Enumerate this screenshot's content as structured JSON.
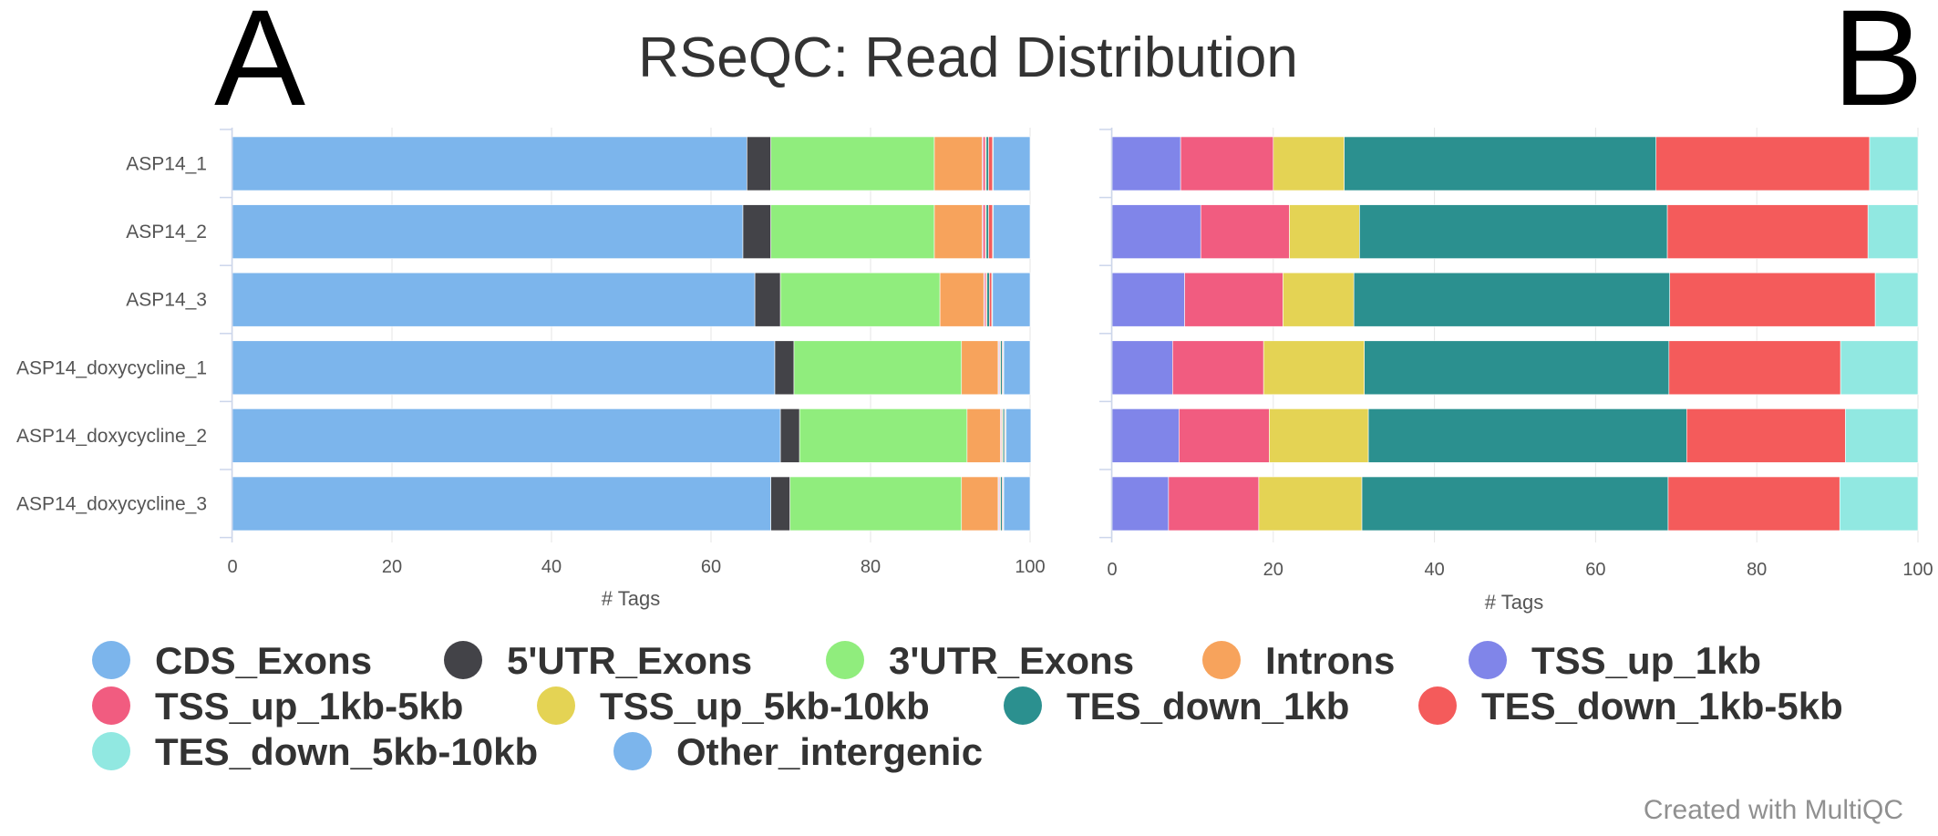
{
  "figure": {
    "title": "RSeQC: Read Distribution",
    "credits": "Created with MultiQC"
  },
  "chart_data": [
    {
      "panel": "A",
      "type": "bar",
      "orientation": "horizontal",
      "stacked": true,
      "title": "",
      "xlabel": "# Tags",
      "ylabel": "",
      "xlim": [
        0,
        100
      ],
      "xticks": [
        "0",
        "20",
        "40",
        "60",
        "80",
        "100"
      ],
      "categories": [
        "ASP14_1",
        "ASP14_2",
        "ASP14_3",
        "ASP14_doxycycline_1",
        "ASP14_doxycycline_2",
        "ASP14_doxycycline_3"
      ],
      "series": [
        {
          "name": "CDS_Exons",
          "color": "#7cb5ec",
          "values": [
            64.5,
            64.0,
            65.5,
            68.0,
            68.7,
            67.5
          ]
        },
        {
          "name": "5'UTR_Exons",
          "color": "#434348",
          "values": [
            3.0,
            3.5,
            3.2,
            2.4,
            2.4,
            2.4
          ]
        },
        {
          "name": "3'UTR_Exons",
          "color": "#90ed7d",
          "values": [
            20.5,
            20.5,
            20.0,
            21.0,
            21.0,
            21.5
          ]
        },
        {
          "name": "Introns",
          "color": "#f7a35c",
          "values": [
            6.0,
            6.0,
            5.5,
            4.6,
            4.2,
            4.6
          ]
        },
        {
          "name": "TSS_up_1kb",
          "color": "#8085e9",
          "values": [
            0.1,
            0.1,
            0.1,
            0.1,
            0.1,
            0.1
          ]
        },
        {
          "name": "TSS_up_1kb-5kb",
          "color": "#f15c80",
          "values": [
            0.3,
            0.3,
            0.2,
            0.1,
            0.1,
            0.1
          ]
        },
        {
          "name": "TSS_up_5kb-10kb",
          "color": "#e4d354",
          "values": [
            0.1,
            0.1,
            0.1,
            0.1,
            0.1,
            0.1
          ]
        },
        {
          "name": "TES_down_1kb",
          "color": "#2b908f",
          "values": [
            0.3,
            0.3,
            0.3,
            0.2,
            0.2,
            0.2
          ]
        },
        {
          "name": "TES_down_1kb-5kb",
          "color": "#f45b5b",
          "values": [
            0.5,
            0.5,
            0.3,
            0.1,
            0.1,
            0.1
          ]
        },
        {
          "name": "TES_down_5kb-10kb",
          "color": "#91e8e1",
          "values": [
            0.1,
            0.1,
            0.1,
            0.1,
            0.1,
            0.1
          ]
        },
        {
          "name": "Other_intergenic",
          "color": "#7cb5ec",
          "values": [
            4.6,
            4.6,
            4.7,
            3.3,
            3.1,
            3.3
          ]
        }
      ]
    },
    {
      "panel": "B",
      "type": "bar",
      "orientation": "horizontal",
      "stacked": true,
      "title": "",
      "xlabel": "# Tags",
      "ylabel": "",
      "xlim": [
        0,
        100
      ],
      "xticks": [
        "0",
        "20",
        "40",
        "60",
        "80",
        "100"
      ],
      "categories": [
        "ASP14_1",
        "ASP14_2",
        "ASP14_3",
        "ASP14_doxycycline_1",
        "ASP14_doxycycline_2",
        "ASP14_doxycycline_3"
      ],
      "series": [
        {
          "name": "TSS_up_1kb",
          "color": "#8085e9",
          "values": [
            8.5,
            11.0,
            9.0,
            7.5,
            8.3,
            7.0
          ]
        },
        {
          "name": "TSS_up_1kb-5kb",
          "color": "#f15c80",
          "values": [
            11.5,
            11.0,
            12.2,
            11.3,
            11.2,
            11.2
          ]
        },
        {
          "name": "TSS_up_5kb-10kb",
          "color": "#e4d354",
          "values": [
            8.8,
            8.7,
            8.8,
            12.5,
            12.3,
            12.8
          ]
        },
        {
          "name": "TES_down_1kb",
          "color": "#2b908f",
          "values": [
            38.7,
            38.2,
            39.2,
            37.8,
            39.5,
            38.0
          ]
        },
        {
          "name": "TES_down_1kb-5kb",
          "color": "#f45b5b",
          "values": [
            26.5,
            24.9,
            25.5,
            21.3,
            19.7,
            21.3
          ]
        },
        {
          "name": "TES_down_5kb-10kb",
          "color": "#91e8e1",
          "values": [
            6.0,
            6.2,
            5.3,
            9.6,
            9.0,
            9.7
          ]
        }
      ]
    }
  ],
  "legend": {
    "items": [
      {
        "label": "CDS_Exons",
        "color": "#7cb5ec"
      },
      {
        "label": "5'UTR_Exons",
        "color": "#434348"
      },
      {
        "label": "3'UTR_Exons",
        "color": "#90ed7d"
      },
      {
        "label": "Introns",
        "color": "#f7a35c"
      },
      {
        "label": "TSS_up_1kb",
        "color": "#8085e9"
      },
      {
        "label": "TSS_up_1kb-5kb",
        "color": "#f15c80"
      },
      {
        "label": "TSS_up_5kb-10kb",
        "color": "#e4d354"
      },
      {
        "label": "TES_down_1kb",
        "color": "#2b908f"
      },
      {
        "label": "TES_down_1kb-5kb",
        "color": "#f45b5b"
      },
      {
        "label": "TES_down_5kb-10kb",
        "color": "#91e8e1"
      },
      {
        "label": "Other_intergenic",
        "color": "#7cb5ec"
      }
    ]
  }
}
